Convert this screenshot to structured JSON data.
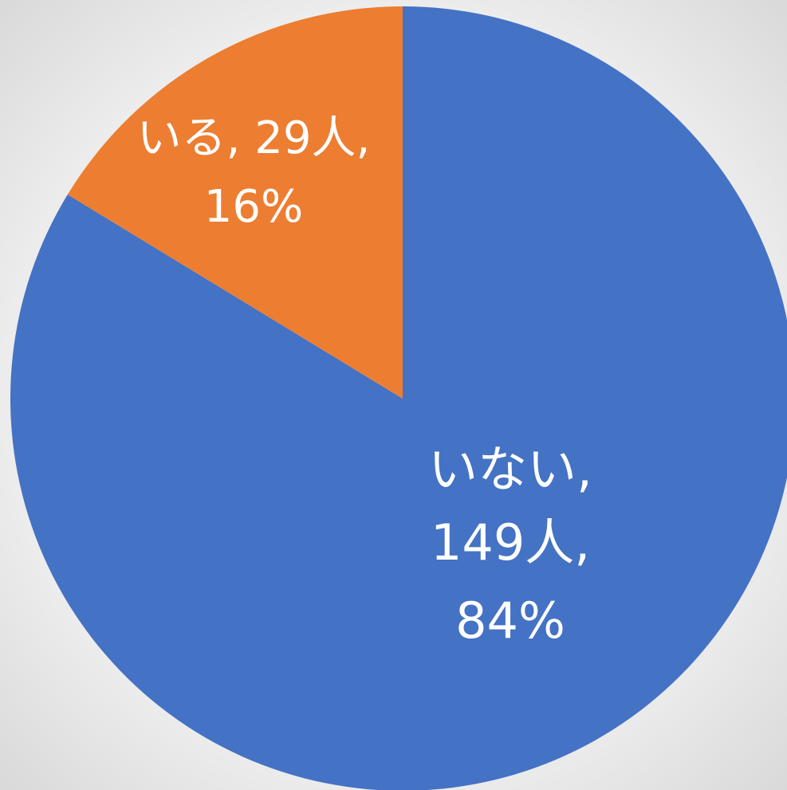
{
  "chart_data": {
    "type": "pie",
    "categories": [
      "いない",
      "いる"
    ],
    "values": [
      149,
      29
    ],
    "value_labels": [
      "149人",
      "29人"
    ],
    "percent_labels": [
      "84%",
      "16%"
    ],
    "separator": ",",
    "colors": [
      "#4472c4",
      "#ed7d31"
    ]
  }
}
